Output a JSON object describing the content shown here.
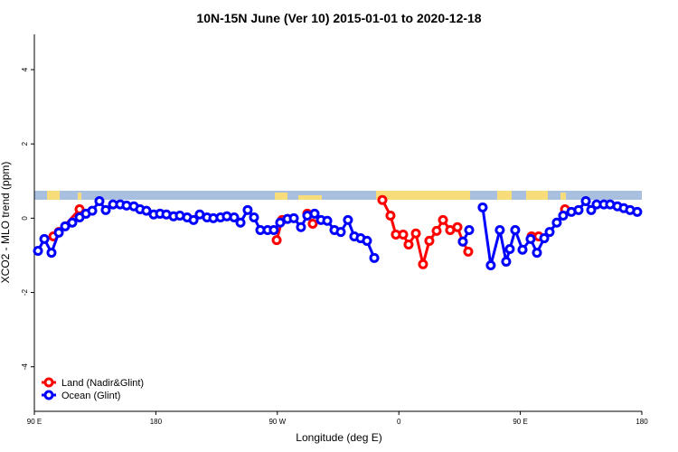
{
  "chart_data": {
    "type": "line",
    "title": "10N-15N June (Ver 10)   2015-01-01 to 2020-12-18",
    "x_label": "Longitude (deg E)",
    "y_label": "XCO2 - MLO trend (ppm)",
    "xlim": [
      90,
      540
    ],
    "ylim": [
      -5.2,
      4.95
    ],
    "xticks": [
      {
        "value": 90,
        "label": "90 E"
      },
      180,
      {
        "value": 270,
        "label": "90 W"
      },
      {
        "value": 360,
        "label": "0"
      },
      {
        "value": 450,
        "label": "90 E"
      },
      {
        "value": 540,
        "label": "180"
      }
    ],
    "yticks": [
      -4,
      -2,
      0,
      2,
      4
    ],
    "legend": "bottom-left",
    "series": [
      {
        "name": "Land (Nadir&Glint)",
        "color": "#ff0000",
        "x": [
          104.1,
          108.1,
          123.5,
          null,
          269.5,
          273.5,
          null,
          292.2,
          296.2,
          null,
          347.8,
          353.8,
          357.8,
          363.2,
          367.2,
          372.6,
          377.9,
          382.6,
          388.0,
          392.7,
          398.0,
          403.4,
          407.4,
          411.4,
          null,
          458.3,
          463.6,
          null,
          483.1
        ],
        "values": [
          -0.49,
          -0.37,
          0.24,
          null,
          -0.59,
          -0.05,
          null,
          0.12,
          -0.15,
          null,
          0.49,
          0.07,
          -0.44,
          -0.44,
          -0.71,
          -0.41,
          -1.24,
          -0.61,
          -0.34,
          -0.05,
          -0.32,
          -0.24,
          -0.63,
          -0.9,
          null,
          -0.49,
          -0.49,
          null,
          0.24
        ]
      },
      {
        "name": "Ocean (Glint)",
        "color": "#0000ff",
        "x": [
          92.7,
          97.4,
          102.7,
          108.1,
          112.8,
          118.1,
          123.5,
          128.2,
          132.9,
          138.2,
          142.9,
          148.3,
          153.6,
          158.3,
          163.7,
          168.3,
          173.0,
          178.4,
          183.1,
          187.8,
          193.1,
          197.8,
          203.2,
          207.9,
          212.5,
          217.9,
          222.6,
          227.9,
          232.6,
          238.0,
          242.7,
          248.0,
          252.7,
          257.4,
          262.8,
          267.4,
          272.1,
          277.5,
          282.2,
          287.5,
          292.2,
          297.6,
          302.3,
          307.0,
          312.3,
          317.0,
          322.3,
          327.0,
          331.7,
          336.4,
          341.8,
          null,
          407.4,
          412.1,
          null,
          422.1,
          428.1,
          434.8,
          439.5,
          442.2,
          446.2,
          451.6,
          457.6,
          462.3,
          467.7,
          471.7,
          477.0,
          481.7,
          487.8,
          493.1,
          498.5,
          502.5,
          506.5,
          511.9,
          516.5,
          521.9,
          526.6,
          531.3,
          536.6
        ],
        "values": [
          -0.88,
          -0.56,
          -0.93,
          -0.39,
          -0.22,
          -0.12,
          0.02,
          0.12,
          0.2,
          0.46,
          0.22,
          0.37,
          0.37,
          0.34,
          0.32,
          0.24,
          0.2,
          0.1,
          0.12,
          0.1,
          0.05,
          0.07,
          0.02,
          -0.05,
          0.1,
          0.02,
          0,
          0.02,
          0.05,
          0.02,
          -0.12,
          0.22,
          0.02,
          -0.32,
          -0.32,
          -0.32,
          -0.12,
          -0.02,
          0,
          -0.24,
          0.07,
          0.12,
          -0.05,
          -0.07,
          -0.32,
          -0.37,
          -0.05,
          -0.49,
          -0.54,
          -0.61,
          -1.07,
          null,
          -0.63,
          -0.32,
          null,
          0.29,
          -1.27,
          -0.32,
          -1.17,
          -0.83,
          -0.32,
          -0.85,
          -0.56,
          -0.93,
          -0.54,
          -0.37,
          -0.12,
          0.07,
          0.17,
          0.22,
          0.46,
          0.22,
          0.37,
          0.37,
          0.37,
          0.32,
          0.27,
          0.22,
          0.17
        ]
      }
    ]
  }
}
